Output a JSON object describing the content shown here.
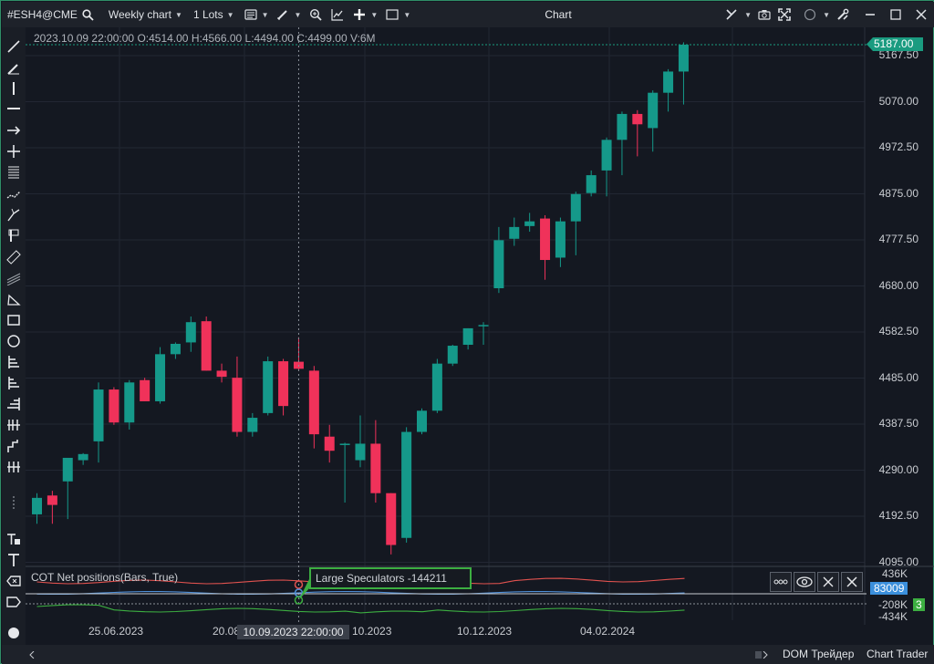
{
  "toolbar": {
    "symbol": "#ESH4@CME",
    "chart_type": "Weekly chart",
    "lots": "1 Lots",
    "window_title": "Chart"
  },
  "ohlc_readout": "2023.10.09 22:00:00 O:4514.00 H:4566.00 L:4494.00 C:4499.00 V:6M",
  "last_price_tag": "5187.00",
  "price_axis": [
    "5167.50",
    "5070.00",
    "4972.50",
    "4875.00",
    "4777.50",
    "4680.00",
    "4582.50",
    "4485.00",
    "4387.50",
    "4290.00",
    "4192.50",
    "4095.00"
  ],
  "date_axis": [
    "25.06.2023",
    "20.08",
    "10.2023",
    "10.12.2023",
    "04.02.2024"
  ],
  "crosshair_date": "10.09.2023 22:00:00",
  "indicator": {
    "name": "COT Net positions(Bars, True)",
    "tooltip": "Large Speculators -144211",
    "scale": [
      "436K",
      "-208K",
      "-434K"
    ],
    "tag_blue": "83009",
    "tag_green": "3"
  },
  "bottom": {
    "dom": "DOM Трейдер",
    "chart_trader": "Chart Trader"
  },
  "colors": {
    "up": "#15998a",
    "down": "#f0325a",
    "accent": "#1a9b80",
    "speculators": "#3cae41",
    "commercial": "#e0524f",
    "small": "#4f8fd8"
  },
  "icons": {
    "symbol_search": "search-icon",
    "list": "list-icon",
    "pencil": "pencil-icon",
    "zoom": "zoom-icon",
    "indicators": "indicators-icon",
    "crosshair": "crosshair-icon",
    "window": "window-icon",
    "camera": "camera-icon",
    "expand": "expand-icon",
    "circle": "circle-icon",
    "tools": "tools-icon",
    "minimize": "minimize-icon",
    "maximize": "maximize-icon",
    "close": "close-icon"
  },
  "chart_data": {
    "type": "candlestick",
    "ylim": [
      4095,
      5187
    ],
    "candles": [
      {
        "o": 4190,
        "h": 4235,
        "l": 4170,
        "c": 4225
      },
      {
        "o": 4230,
        "h": 4240,
        "l": 4170,
        "c": 4210
      },
      {
        "o": 4260,
        "h": 4305,
        "l": 4180,
        "c": 4310
      },
      {
        "o": 4305,
        "h": 4320,
        "l": 4295,
        "c": 4318
      },
      {
        "o": 4345,
        "h": 4470,
        "l": 4300,
        "c": 4455
      },
      {
        "o": 4455,
        "h": 4460,
        "l": 4380,
        "c": 4385
      },
      {
        "o": 4385,
        "h": 4475,
        "l": 4370,
        "c": 4470
      },
      {
        "o": 4475,
        "h": 4480,
        "l": 4430,
        "c": 4430
      },
      {
        "o": 4430,
        "h": 4545,
        "l": 4425,
        "c": 4530
      },
      {
        "o": 4530,
        "h": 4555,
        "l": 4520,
        "c": 4552
      },
      {
        "o": 4555,
        "h": 4610,
        "l": 4535,
        "c": 4598
      },
      {
        "o": 4600,
        "h": 4610,
        "l": 4495,
        "c": 4495
      },
      {
        "o": 4495,
        "h": 4510,
        "l": 4470,
        "c": 4482
      },
      {
        "o": 4480,
        "h": 4525,
        "l": 4355,
        "c": 4365
      },
      {
        "o": 4365,
        "h": 4405,
        "l": 4355,
        "c": 4395
      },
      {
        "o": 4405,
        "h": 4525,
        "l": 4400,
        "c": 4515
      },
      {
        "o": 4515,
        "h": 4520,
        "l": 4400,
        "c": 4420
      },
      {
        "o": 4514,
        "h": 4566,
        "l": 4494,
        "c": 4499
      },
      {
        "o": 4495,
        "h": 4505,
        "l": 4330,
        "c": 4360
      },
      {
        "o": 4355,
        "h": 4380,
        "l": 4300,
        "c": 4325
      },
      {
        "o": 4340,
        "h": 4342,
        "l": 4215,
        "c": 4340
      },
      {
        "o": 4305,
        "h": 4400,
        "l": 4290,
        "c": 4340
      },
      {
        "o": 4340,
        "h": 4390,
        "l": 4215,
        "c": 4235
      },
      {
        "o": 4235,
        "h": 4235,
        "l": 4105,
        "c": 4125
      },
      {
        "o": 4140,
        "h": 4375,
        "l": 4130,
        "c": 4365
      },
      {
        "o": 4365,
        "h": 4415,
        "l": 4360,
        "c": 4410
      },
      {
        "o": 4410,
        "h": 4520,
        "l": 4405,
        "c": 4510
      },
      {
        "o": 4510,
        "h": 4550,
        "l": 4505,
        "c": 4548
      },
      {
        "o": 4550,
        "h": 4585,
        "l": 4540,
        "c": 4585
      },
      {
        "o": 4592,
        "h": 4598,
        "l": 4550,
        "c": 4592
      },
      {
        "o": 4670,
        "h": 4800,
        "l": 4660,
        "c": 4772
      },
      {
        "o": 4775,
        "h": 4820,
        "l": 4760,
        "c": 4800
      },
      {
        "o": 4802,
        "h": 4830,
        "l": 4790,
        "c": 4812
      },
      {
        "o": 4818,
        "h": 4825,
        "l": 4688,
        "c": 4730
      },
      {
        "o": 4735,
        "h": 4820,
        "l": 4715,
        "c": 4812
      },
      {
        "o": 4812,
        "h": 4875,
        "l": 4740,
        "c": 4870
      },
      {
        "o": 4872,
        "h": 4920,
        "l": 4865,
        "c": 4910
      },
      {
        "o": 4920,
        "h": 4990,
        "l": 4865,
        "c": 4985
      },
      {
        "o": 4985,
        "h": 5045,
        "l": 4910,
        "c": 5040
      },
      {
        "o": 5040,
        "h": 5048,
        "l": 4950,
        "c": 5018
      },
      {
        "o": 5010,
        "h": 5090,
        "l": 4960,
        "c": 5085
      },
      {
        "o": 5085,
        "h": 5135,
        "l": 5045,
        "c": 5130
      },
      {
        "o": 5130,
        "h": 5192,
        "l": 5060,
        "c": 5187
      }
    ]
  }
}
